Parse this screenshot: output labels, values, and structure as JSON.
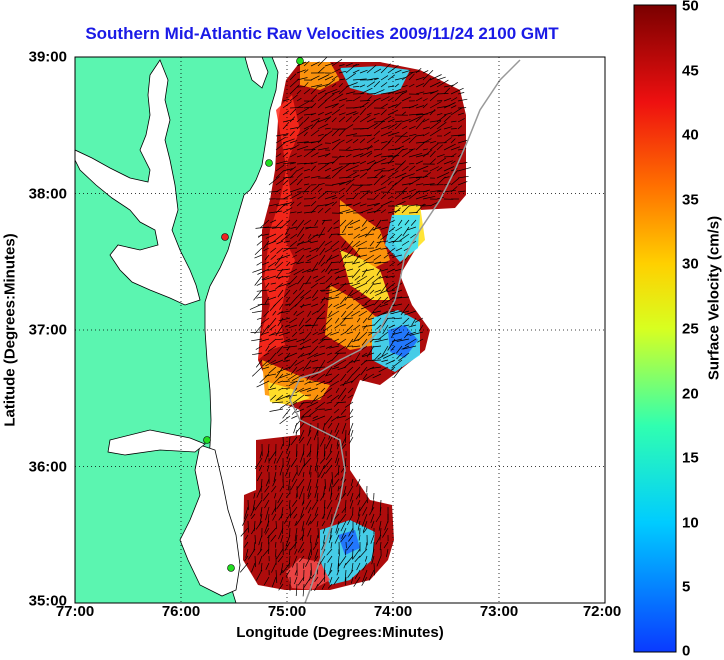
{
  "title": "Southern Mid-Atlantic Raw Velocities 2009/11/24 2100 GMT",
  "xlabel": "Longitude (Degrees:Minutes)",
  "ylabel": "Latitude (Degrees:Minutes)",
  "colorbar_label": "Surface Velocity (cm/s)",
  "x_ticks": [
    "77:00",
    "76:00",
    "75:00",
    "74:00",
    "73:00",
    "72:00"
  ],
  "y_ticks": [
    "39:00",
    "38:00",
    "37:00",
    "36:00",
    "35:00"
  ],
  "colorbar_ticks": [
    "50",
    "45",
    "40",
    "35",
    "30",
    "25",
    "20",
    "15",
    "10",
    "5",
    "0"
  ],
  "colors": {
    "land": "#5bf5b0",
    "title": "#1a1ae6",
    "station_active": "#22dd22",
    "station_inactive": "#ee2222"
  },
  "map": {
    "lon_range": [
      -77.0,
      -72.0
    ],
    "lat_range": [
      35.0,
      39.0
    ],
    "velocity_range": [
      0,
      50
    ],
    "grid": "dotted"
  }
}
